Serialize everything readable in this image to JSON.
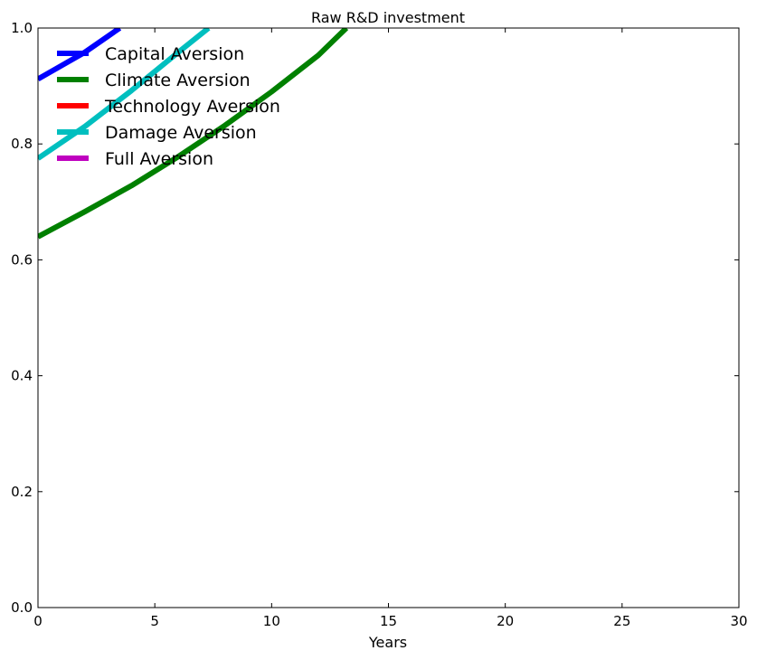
{
  "chart_data": {
    "type": "line",
    "title": "Raw R&D investment",
    "xlabel": "Years",
    "ylabel": "",
    "xlim": [
      0,
      30
    ],
    "ylim": [
      0,
      1.0
    ],
    "x_ticks": [
      "0",
      "5",
      "10",
      "15",
      "20",
      "25",
      "30"
    ],
    "y_ticks": [
      "0.0",
      "0.2",
      "0.4",
      "0.6",
      "0.8",
      "1.0"
    ],
    "grid": false,
    "legend_position": "top-left",
    "series": [
      {
        "name": "Capital Aversion",
        "color": "#0000ff",
        "x": [
          0,
          1,
          2,
          3,
          3.5
        ],
        "y": [
          0.912,
          0.935,
          0.958,
          0.986,
          1.0
        ]
      },
      {
        "name": "Climate Aversion",
        "color": "#008000",
        "x": [
          0,
          2,
          4,
          6,
          8,
          10,
          12,
          13.2
        ],
        "y": [
          0.64,
          0.683,
          0.728,
          0.778,
          0.832,
          0.89,
          0.953,
          1.0
        ]
      },
      {
        "name": "Technology Aversion",
        "color": "#ff0000",
        "x": [],
        "y": []
      },
      {
        "name": "Damage Aversion",
        "color": "#00bfbf",
        "x": [
          0,
          2,
          4,
          6,
          7.3
        ],
        "y": [
          0.775,
          0.83,
          0.892,
          0.958,
          1.0
        ]
      },
      {
        "name": "Full Aversion",
        "color": "#bf00bf",
        "x": [],
        "y": []
      }
    ]
  }
}
